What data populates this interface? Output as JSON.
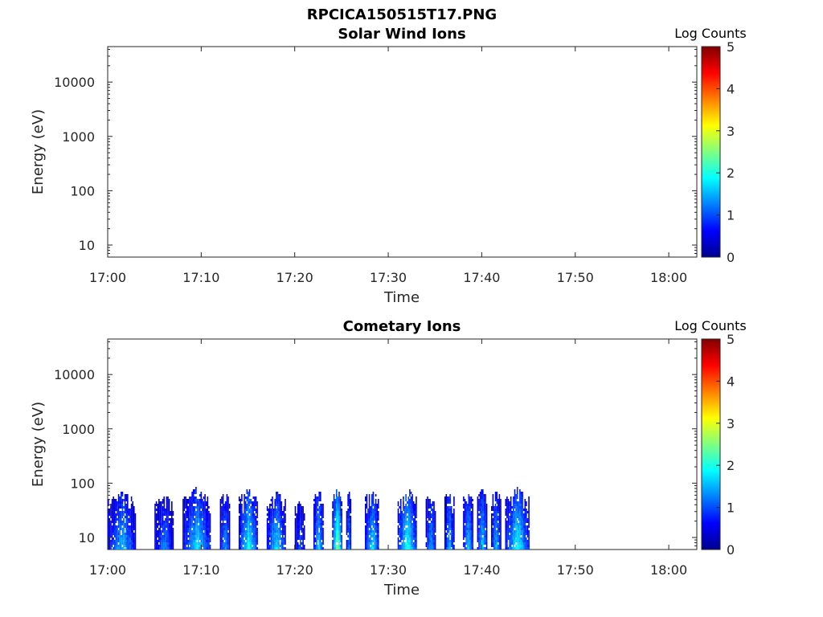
{
  "figure": {
    "title": "RPCICA150515T17.PNG"
  },
  "colormap": [
    "#00008f",
    "#0000ff",
    "#0080ff",
    "#00ffff",
    "#80ff80",
    "#ffff00",
    "#ff8000",
    "#ff0000",
    "#800000"
  ],
  "chart_data": [
    {
      "type": "heatmap",
      "title": "Solar Wind Ions",
      "xlabel": "Time",
      "ylabel": "Energy (eV)",
      "x_range": [
        "17:00",
        "18:03"
      ],
      "x_ticks": [
        "17:00",
        "17:10",
        "17:20",
        "17:30",
        "17:40",
        "17:50",
        "18:00"
      ],
      "y_scale": "log",
      "y_range": [
        6,
        45000
      ],
      "y_ticks": [
        10,
        100,
        1000,
        10000
      ],
      "y_tick_labels": [
        "10",
        "100",
        "1000",
        "10000"
      ],
      "colorbar": {
        "label": "Log Counts",
        "range": [
          0,
          5
        ],
        "ticks": [
          "0",
          "1",
          "2",
          "3",
          "4",
          "5"
        ]
      },
      "data_coverage": "no data",
      "bursts": []
    },
    {
      "type": "heatmap",
      "title": "Cometary Ions",
      "xlabel": "Time",
      "ylabel": "Energy (eV)",
      "x_range": [
        "17:00",
        "18:03"
      ],
      "x_ticks": [
        "17:00",
        "17:10",
        "17:20",
        "17:30",
        "17:40",
        "17:50",
        "18:00"
      ],
      "y_scale": "log",
      "y_range": [
        6,
        45000
      ],
      "y_ticks": [
        10,
        100,
        1000,
        10000
      ],
      "y_tick_labels": [
        "10",
        "100",
        "1000",
        "10000"
      ],
      "colorbar": {
        "label": "Log Counts",
        "range": [
          0,
          5
        ],
        "ticks": [
          "0",
          "1",
          "2",
          "3",
          "4",
          "5"
        ]
      },
      "data_coverage": "17:00 to 17:45, energies below ~80 eV",
      "bursts": [
        {
          "start": "17:00",
          "end": "17:03",
          "emax_ev": 70,
          "peak_log_counts": 1.8
        },
        {
          "start": "17:05",
          "end": "17:07",
          "emax_ev": 60,
          "peak_log_counts": 1.5
        },
        {
          "start": "17:08",
          "end": "17:11",
          "emax_ev": 80,
          "peak_log_counts": 2.0
        },
        {
          "start": "17:12",
          "end": "17:13",
          "emax_ev": 75,
          "peak_log_counts": 1.7
        },
        {
          "start": "17:14",
          "end": "17:16",
          "emax_ev": 80,
          "peak_log_counts": 2.2
        },
        {
          "start": "17:17",
          "end": "17:19",
          "emax_ev": 70,
          "peak_log_counts": 2.0
        },
        {
          "start": "17:20",
          "end": "17:21",
          "emax_ev": 50,
          "peak_log_counts": 1.3
        },
        {
          "start": "17:22",
          "end": "17:23",
          "emax_ev": 80,
          "peak_log_counts": 2.0
        },
        {
          "start": "17:24",
          "end": "17:25",
          "emax_ev": 80,
          "peak_log_counts": 2.8
        },
        {
          "start": "17:25.5",
          "end": "17:26",
          "emax_ev": 70,
          "peak_log_counts": 1.6
        },
        {
          "start": "17:27.5",
          "end": "17:29",
          "emax_ev": 80,
          "peak_log_counts": 2.0
        },
        {
          "start": "17:31",
          "end": "17:33",
          "emax_ev": 80,
          "peak_log_counts": 2.3
        },
        {
          "start": "17:34",
          "end": "17:35",
          "emax_ev": 75,
          "peak_log_counts": 1.7
        },
        {
          "start": "17:36",
          "end": "17:37",
          "emax_ev": 80,
          "peak_log_counts": 1.8
        },
        {
          "start": "17:38",
          "end": "17:39",
          "emax_ev": 80,
          "peak_log_counts": 2.0
        },
        {
          "start": "17:39.5",
          "end": "17:40.5",
          "emax_ev": 80,
          "peak_log_counts": 2.0
        },
        {
          "start": "17:41",
          "end": "17:42",
          "emax_ev": 80,
          "peak_log_counts": 1.8
        },
        {
          "start": "17:42.5",
          "end": "17:45",
          "emax_ev": 80,
          "peak_log_counts": 2.2
        }
      ]
    }
  ]
}
